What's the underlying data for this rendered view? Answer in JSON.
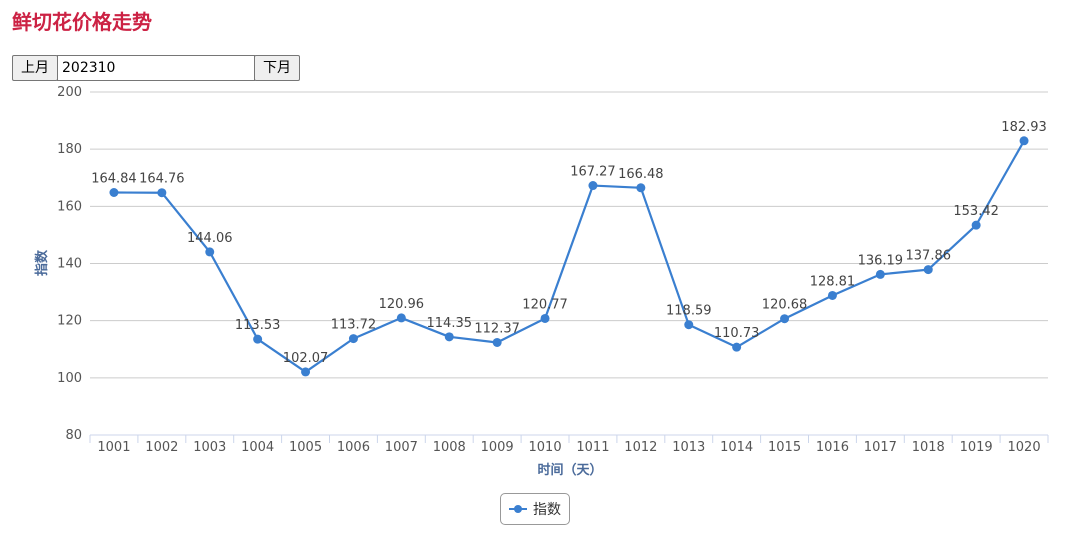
{
  "page": {
    "title": "鲜切花价格走势"
  },
  "controls": {
    "prev_label": "上月",
    "month_value": "202310",
    "next_label": "下月"
  },
  "colors": {
    "title": "#cc2244",
    "series": "#3a7fd0",
    "grid": "#cccccc",
    "axis_title": "#4a6a9a"
  },
  "legend": {
    "icon": "line-dot-marker",
    "label": "指数"
  },
  "chart_data": {
    "type": "line",
    "title": "",
    "xlabel": "时间（天）",
    "ylabel": "指数",
    "ylim": [
      80,
      200
    ],
    "yticks": [
      80,
      100,
      120,
      140,
      160,
      180,
      200
    ],
    "grid": true,
    "legend_position": "bottom-center",
    "categories": [
      "1001",
      "1002",
      "1003",
      "1004",
      "1005",
      "1006",
      "1007",
      "1008",
      "1009",
      "1010",
      "1011",
      "1012",
      "1013",
      "1014",
      "1015",
      "1016",
      "1017",
      "1018",
      "1019",
      "1020"
    ],
    "series": [
      {
        "name": "指数",
        "values": [
          164.84,
          164.76,
          144.06,
          113.53,
          102.07,
          113.72,
          120.96,
          114.35,
          112.37,
          120.77,
          167.27,
          166.48,
          118.59,
          110.73,
          120.68,
          128.81,
          136.19,
          137.86,
          153.42,
          182.93
        ]
      }
    ]
  }
}
